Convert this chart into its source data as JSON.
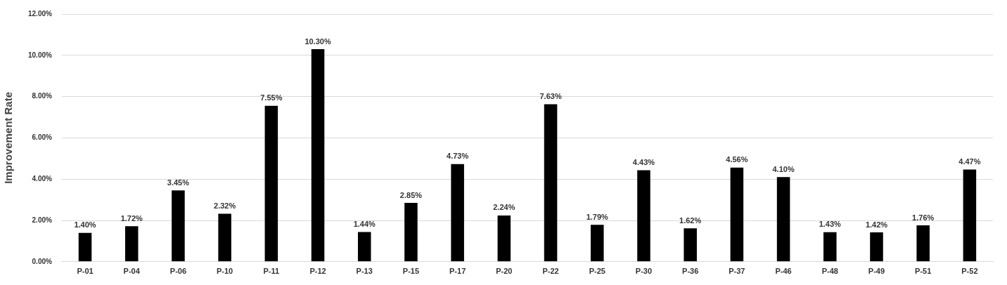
{
  "chart_data": {
    "type": "bar",
    "ylabel": "Improvement Rate",
    "categories": [
      "P-01",
      "P-04",
      "P-06",
      "P-10",
      "P-11",
      "P-12",
      "P-13",
      "P-15",
      "P-17",
      "P-20",
      "P-22",
      "P-25",
      "P-30",
      "P-36",
      "P-37",
      "P-46",
      "P-48",
      "P-49",
      "P-51",
      "P-52"
    ],
    "values": [
      1.4,
      1.72,
      3.45,
      2.32,
      7.55,
      10.3,
      1.44,
      2.85,
      4.73,
      2.24,
      7.63,
      1.79,
      4.43,
      1.62,
      4.56,
      4.1,
      1.43,
      1.42,
      1.76,
      4.47
    ],
    "value_labels": [
      "1.40%",
      "1.72%",
      "3.45%",
      "2.32%",
      "7.55%",
      "10.30%",
      "1.44%",
      "2.85%",
      "4.73%",
      "2.24%",
      "7.63%",
      "1.79%",
      "4.43%",
      "1.62%",
      "4.56%",
      "4.10%",
      "1.43%",
      "1.42%",
      "1.76%",
      "4.47%"
    ],
    "color": "#000000",
    "ylim": [
      0,
      12
    ],
    "yticks": [
      {
        "value": 0,
        "label": "0.00%"
      },
      {
        "value": 2,
        "label": "2.00%"
      },
      {
        "value": 4,
        "label": "4.00%"
      },
      {
        "value": 6,
        "label": "6.00%"
      },
      {
        "value": 8,
        "label": "8.00%"
      },
      {
        "value": 10,
        "label": "10.00%"
      },
      {
        "value": 12,
        "label": "12.00%"
      }
    ],
    "grid": "y"
  }
}
